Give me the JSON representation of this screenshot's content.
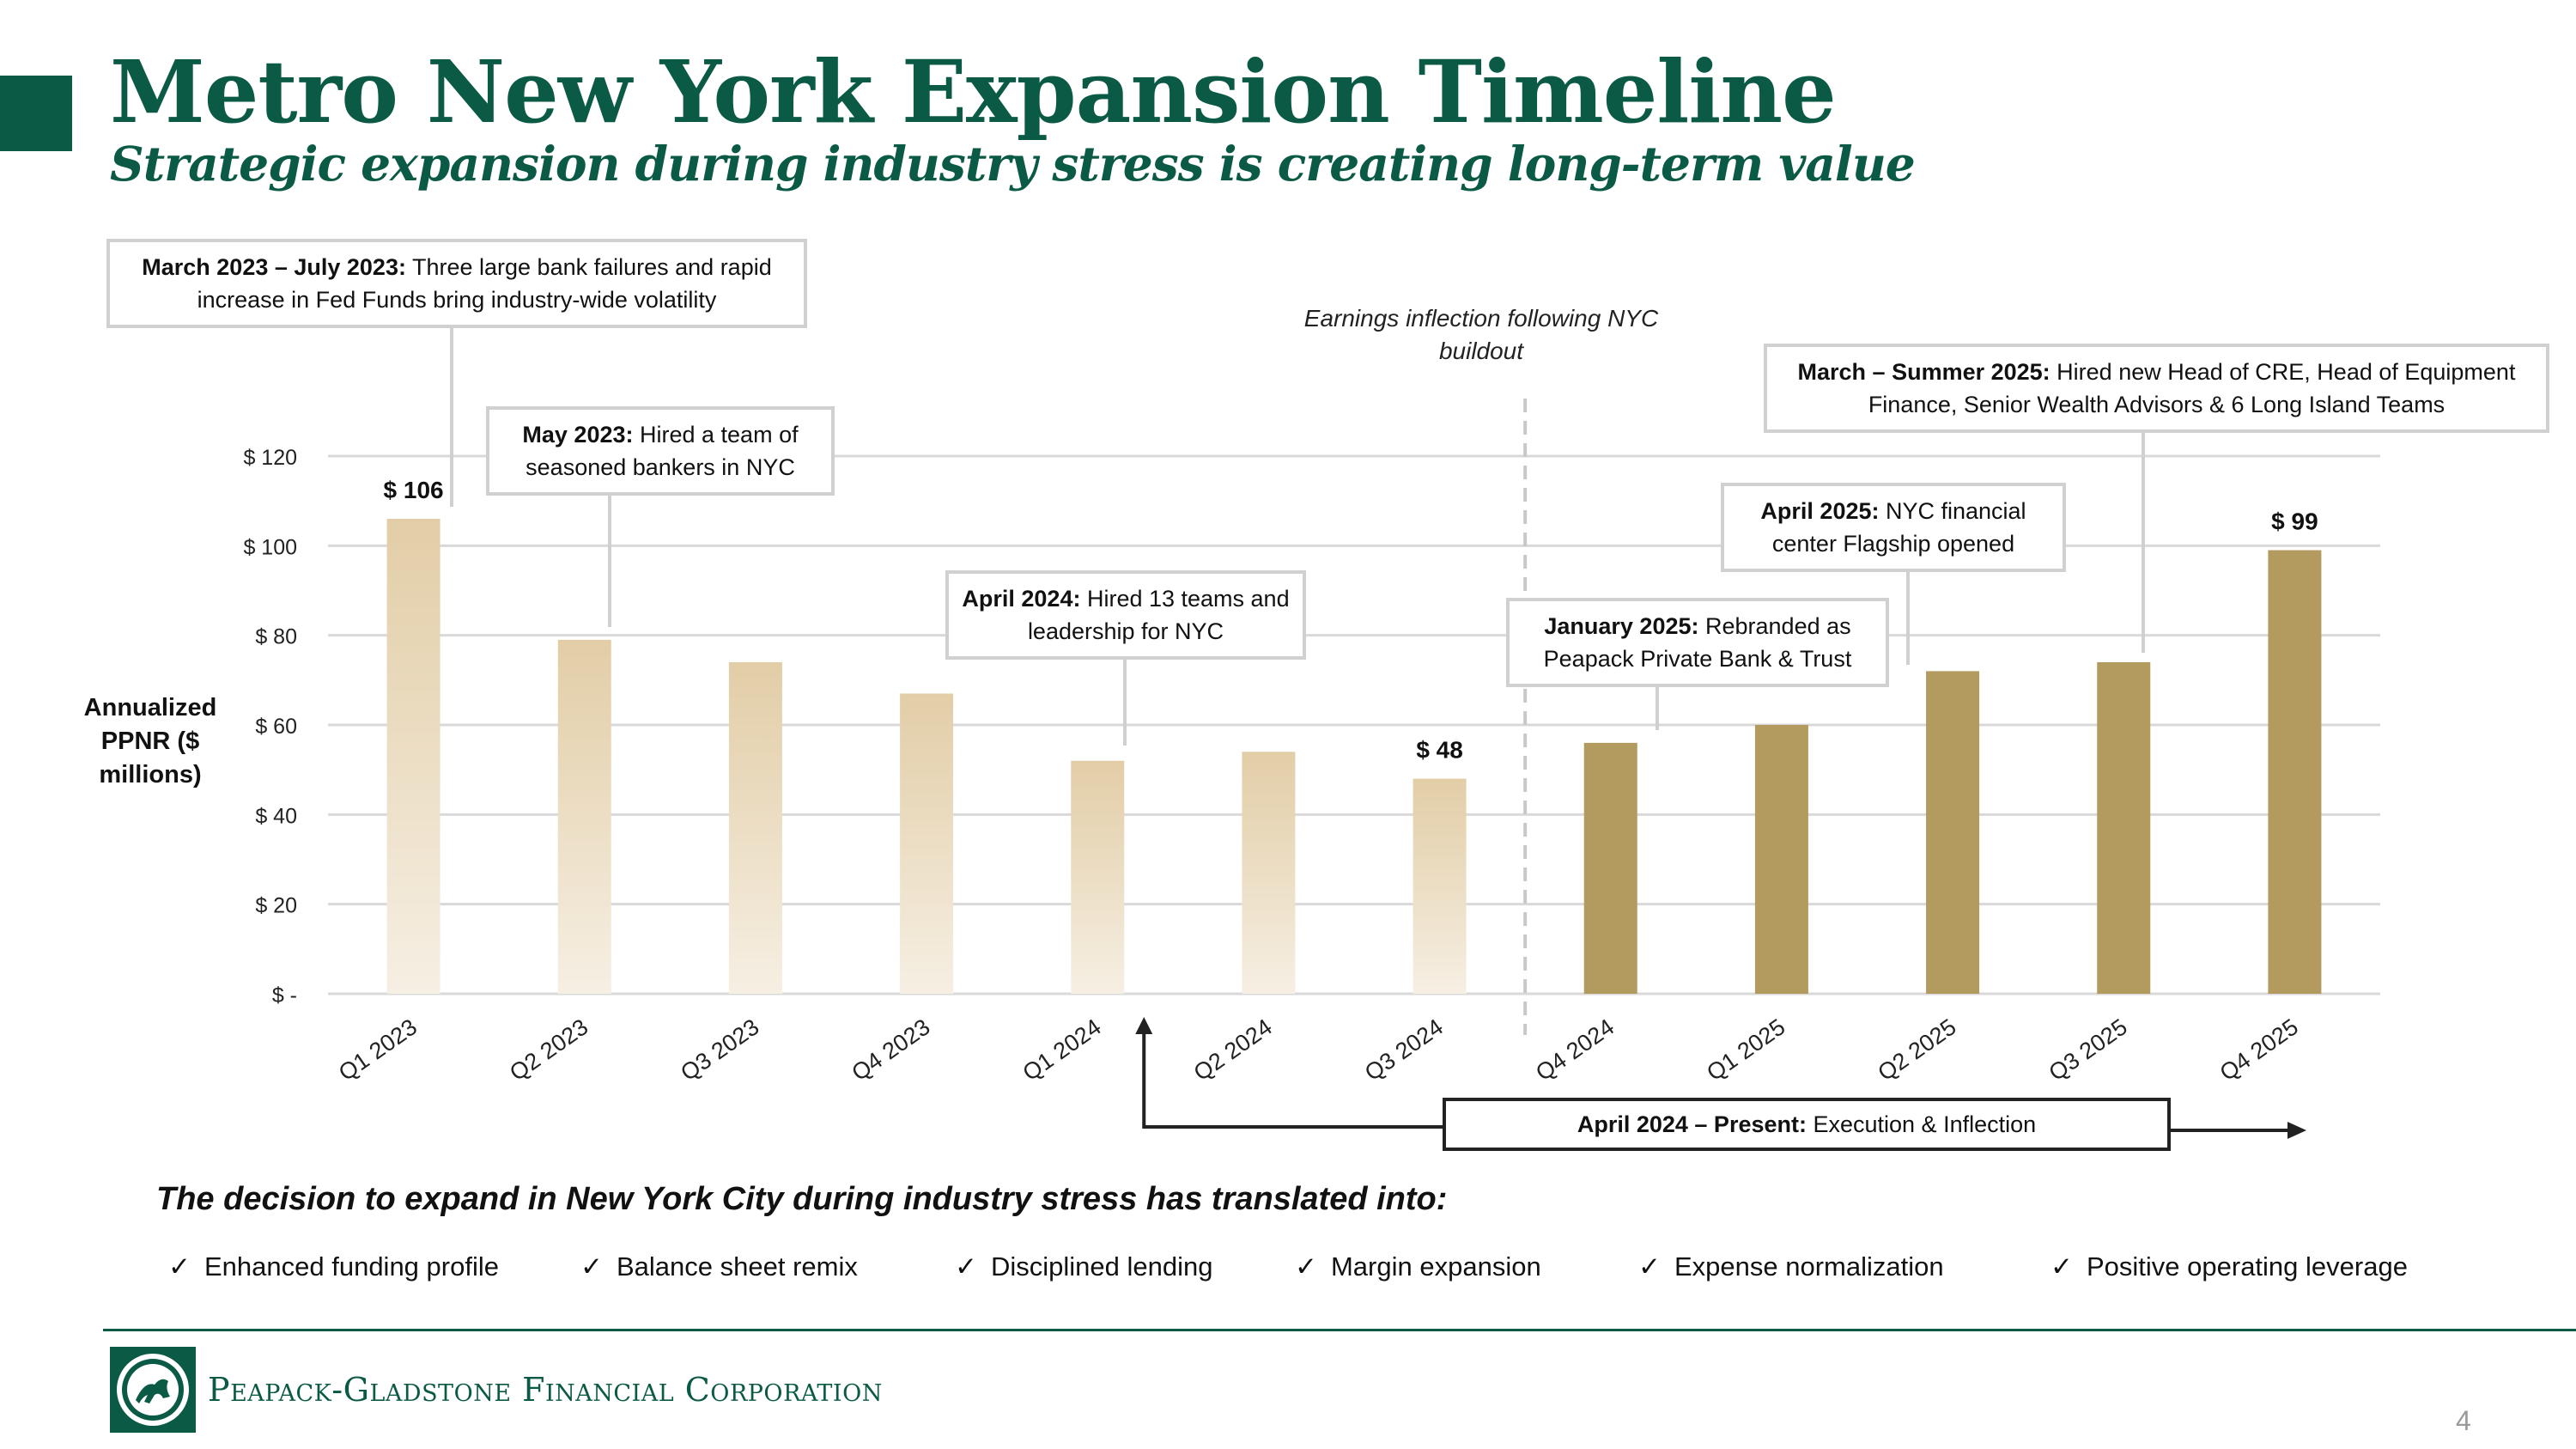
{
  "header": {
    "title": "Metro New York Expansion Timeline",
    "subtitle": "Strategic expansion during industry stress is creating long-term value"
  },
  "chart_data": {
    "type": "bar",
    "categories": [
      "Q1 2023",
      "Q2 2023",
      "Q3 2023",
      "Q4 2023",
      "Q1 2024",
      "Q2 2024",
      "Q3 2024",
      "Q4 2024",
      "Q1 2025",
      "Q2 2025",
      "Q3 2025",
      "Q4 2025"
    ],
    "values": [
      106,
      79,
      74,
      67,
      52,
      54,
      48,
      56,
      60,
      72,
      74,
      99
    ],
    "ylabel": "Annualized PPNR ($ millions)",
    "yticks": [
      "$ -",
      "$ 20",
      "$ 40",
      "$ 60",
      "$ 80",
      "$ 100",
      "$ 120"
    ],
    "ylim": [
      0,
      120
    ],
    "data_labels": [
      {
        "index": 0,
        "text": "$ 106"
      },
      {
        "index": 6,
        "text": "$ 48"
      },
      {
        "index": 11,
        "text": "$ 99"
      }
    ],
    "grid": true,
    "colors": {
      "early_bar_top": "#e2cda6",
      "early_bar_bottom": "#f6efe3",
      "later_bar": "#b39a5e",
      "grid": "#d9d9d9"
    },
    "divider_note": "Earnings inflection following NYC buildout"
  },
  "callouts": {
    "c1": {
      "bold": "March 2023 – July 2023:",
      "text": " Three large bank failures and rapid increase in Fed Funds bring industry-wide volatility"
    },
    "c2": {
      "bold": "May 2023:",
      "text": " Hired a team of seasoned bankers in NYC"
    },
    "c3": {
      "bold": "April 2024:",
      "text": " Hired 13 teams and leadership for NYC"
    },
    "c4": {
      "bold": "January 2025:",
      "text": " Rebranded as Peapack Private Bank & Trust"
    },
    "c5": {
      "bold": "April 2025:",
      "text": " NYC financial center Flagship opened"
    },
    "c6": {
      "bold": "March – Summer 2025:",
      "text": " Hired new Head of CRE, Head of Equipment Finance, Senior Wealth Advisors & 6 Long Island Teams"
    },
    "c7": {
      "bold": "April 2024 – Present:",
      "text": " Execution & Inflection"
    }
  },
  "bottom": {
    "heading": "The decision to expand in New York City during industry stress has translated into:",
    "check": "✓",
    "bullets": [
      "Enhanced funding profile",
      "Balance sheet remix",
      "Disciplined lending",
      "Margin expansion",
      "Expense normalization",
      "Positive operating leverage"
    ]
  },
  "footer": {
    "company": "Peapack-Gladstone Financial Corporation",
    "page_number": "4"
  }
}
